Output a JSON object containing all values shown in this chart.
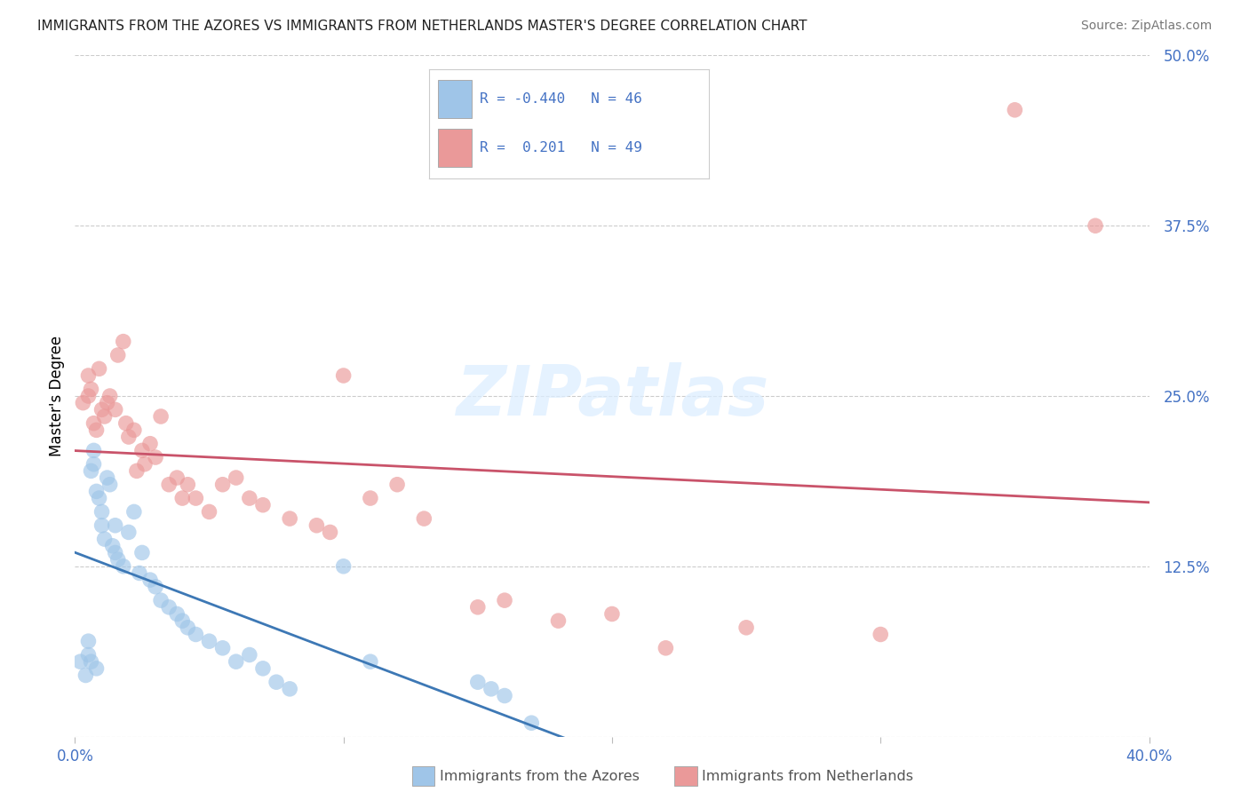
{
  "title": "IMMIGRANTS FROM THE AZORES VS IMMIGRANTS FROM NETHERLANDS MASTER'S DEGREE CORRELATION CHART",
  "source": "Source: ZipAtlas.com",
  "ylabel": "Master's Degree",
  "xmin": 0.0,
  "xmax": 0.4,
  "ymin": 0.0,
  "ymax": 0.5,
  "yticks": [
    0.0,
    0.125,
    0.25,
    0.375,
    0.5
  ],
  "ytick_labels": [
    "",
    "12.5%",
    "25.0%",
    "37.5%",
    "50.0%"
  ],
  "xticks": [
    0.0,
    0.1,
    0.2,
    0.3,
    0.4
  ],
  "xtick_labels": [
    "0.0%",
    "",
    "",
    "",
    "40.0%"
  ],
  "legend_blue_r": "R = -0.440",
  "legend_blue_n": "N = 46",
  "legend_pink_r": "R =  0.201",
  "legend_pink_n": "N = 49",
  "legend_label_blue": "Immigrants from the Azores",
  "legend_label_pink": "Immigrants from Netherlands",
  "blue_color": "#9fc5e8",
  "pink_color": "#ea9999",
  "blue_line_color": "#3d78b5",
  "pink_line_color": "#c9536a",
  "watermark": "ZIPatlas",
  "background_color": "#ffffff",
  "grid_color": "#cccccc",
  "blue_dots_x": [
    0.002,
    0.004,
    0.005,
    0.005,
    0.006,
    0.006,
    0.007,
    0.007,
    0.008,
    0.008,
    0.009,
    0.01,
    0.01,
    0.011,
    0.012,
    0.013,
    0.014,
    0.015,
    0.015,
    0.016,
    0.018,
    0.02,
    0.022,
    0.024,
    0.025,
    0.028,
    0.03,
    0.032,
    0.035,
    0.038,
    0.04,
    0.042,
    0.045,
    0.05,
    0.055,
    0.06,
    0.065,
    0.07,
    0.075,
    0.08,
    0.1,
    0.11,
    0.15,
    0.155,
    0.16,
    0.17
  ],
  "blue_dots_y": [
    0.055,
    0.045,
    0.07,
    0.06,
    0.055,
    0.195,
    0.2,
    0.21,
    0.05,
    0.18,
    0.175,
    0.165,
    0.155,
    0.145,
    0.19,
    0.185,
    0.14,
    0.135,
    0.155,
    0.13,
    0.125,
    0.15,
    0.165,
    0.12,
    0.135,
    0.115,
    0.11,
    0.1,
    0.095,
    0.09,
    0.085,
    0.08,
    0.075,
    0.07,
    0.065,
    0.055,
    0.06,
    0.05,
    0.04,
    0.035,
    0.125,
    0.055,
    0.04,
    0.035,
    0.03,
    0.01
  ],
  "pink_dots_x": [
    0.003,
    0.005,
    0.005,
    0.006,
    0.007,
    0.008,
    0.009,
    0.01,
    0.011,
    0.012,
    0.013,
    0.015,
    0.016,
    0.018,
    0.019,
    0.02,
    0.022,
    0.023,
    0.025,
    0.026,
    0.028,
    0.03,
    0.032,
    0.035,
    0.038,
    0.04,
    0.042,
    0.045,
    0.05,
    0.055,
    0.06,
    0.065,
    0.07,
    0.08,
    0.09,
    0.095,
    0.1,
    0.11,
    0.12,
    0.13,
    0.15,
    0.16,
    0.18,
    0.2,
    0.22,
    0.25,
    0.3,
    0.35,
    0.38
  ],
  "pink_dots_y": [
    0.245,
    0.25,
    0.265,
    0.255,
    0.23,
    0.225,
    0.27,
    0.24,
    0.235,
    0.245,
    0.25,
    0.24,
    0.28,
    0.29,
    0.23,
    0.22,
    0.225,
    0.195,
    0.21,
    0.2,
    0.215,
    0.205,
    0.235,
    0.185,
    0.19,
    0.175,
    0.185,
    0.175,
    0.165,
    0.185,
    0.19,
    0.175,
    0.17,
    0.16,
    0.155,
    0.15,
    0.265,
    0.175,
    0.185,
    0.16,
    0.095,
    0.1,
    0.085,
    0.09,
    0.065,
    0.08,
    0.075,
    0.46,
    0.375
  ]
}
